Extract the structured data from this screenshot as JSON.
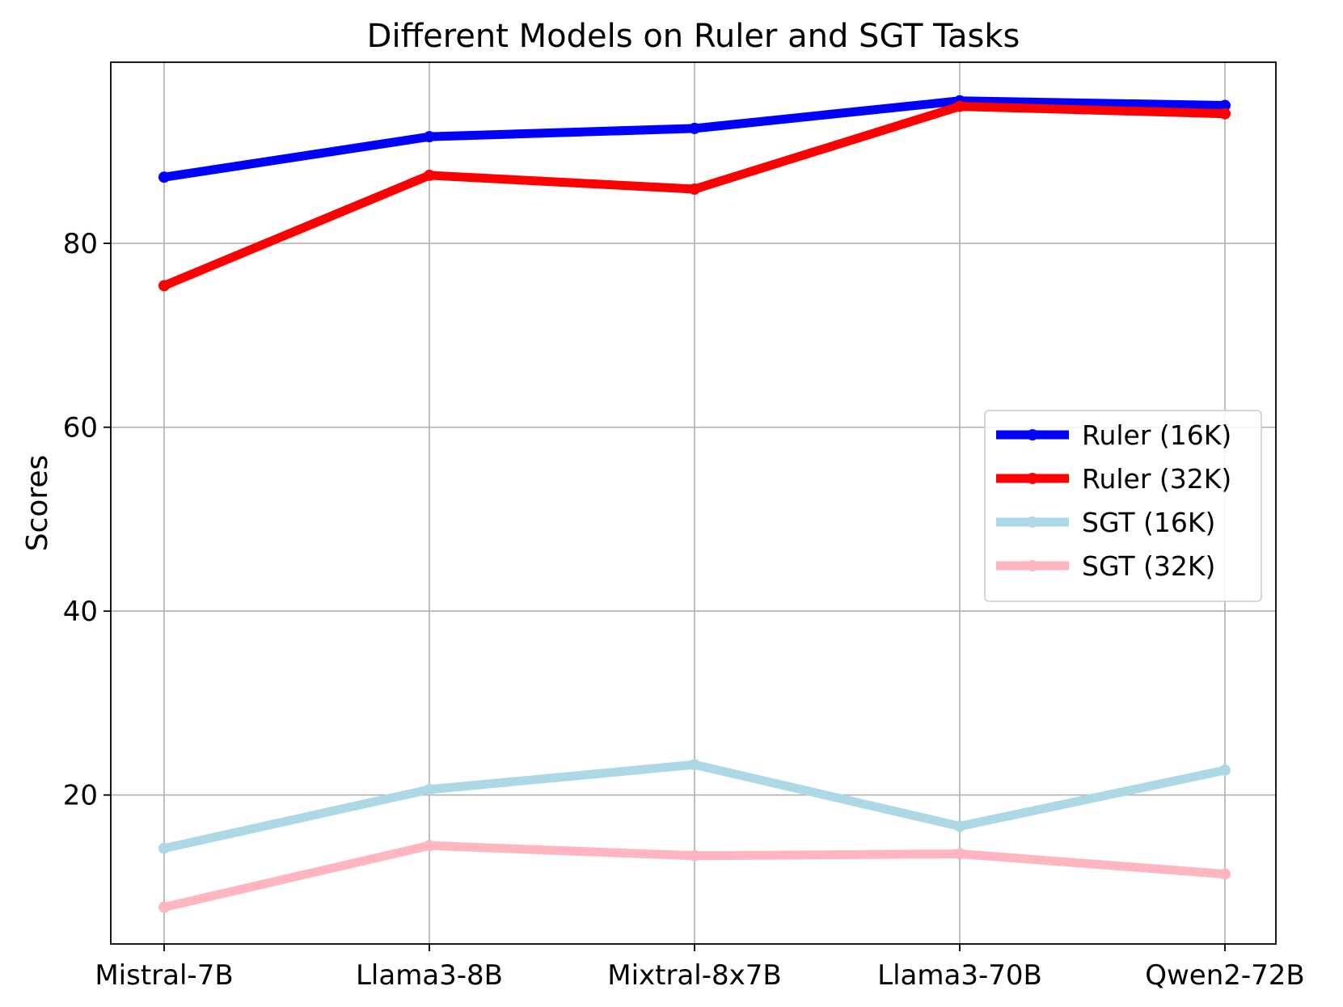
{
  "chart_data": {
    "type": "line",
    "title": "Different Models on Ruler and SGT Tasks",
    "xlabel": "",
    "ylabel": "Scores",
    "categories": [
      "Mistral-7B",
      "Llama3-8B",
      "Mixtral-8x7B",
      "Llama3-70B",
      "Qwen2-72B"
    ],
    "y_ticks": [
      20,
      40,
      60,
      80
    ],
    "ylim": [
      3.8,
      99.7
    ],
    "grid": true,
    "legend_position": "center-right",
    "series": [
      {
        "name": "Ruler (16K)",
        "color": "#0000ff",
        "values": [
          87.2,
          91.6,
          92.5,
          95.5,
          95.0
        ],
        "line_width": "thick"
      },
      {
        "name": "Ruler (32K)",
        "color": "#ff0000",
        "values": [
          75.4,
          87.4,
          85.9,
          94.9,
          94.1
        ],
        "line_width": "thick"
      },
      {
        "name": "SGT (16K)",
        "color": "#add8e6",
        "values": [
          14.2,
          20.6,
          23.3,
          16.6,
          22.7
        ],
        "line_width": "thick"
      },
      {
        "name": "SGT (32K)",
        "color": "#ffb6c1",
        "values": [
          7.8,
          14.5,
          13.4,
          13.6,
          11.4
        ],
        "line_width": "thick"
      }
    ]
  }
}
